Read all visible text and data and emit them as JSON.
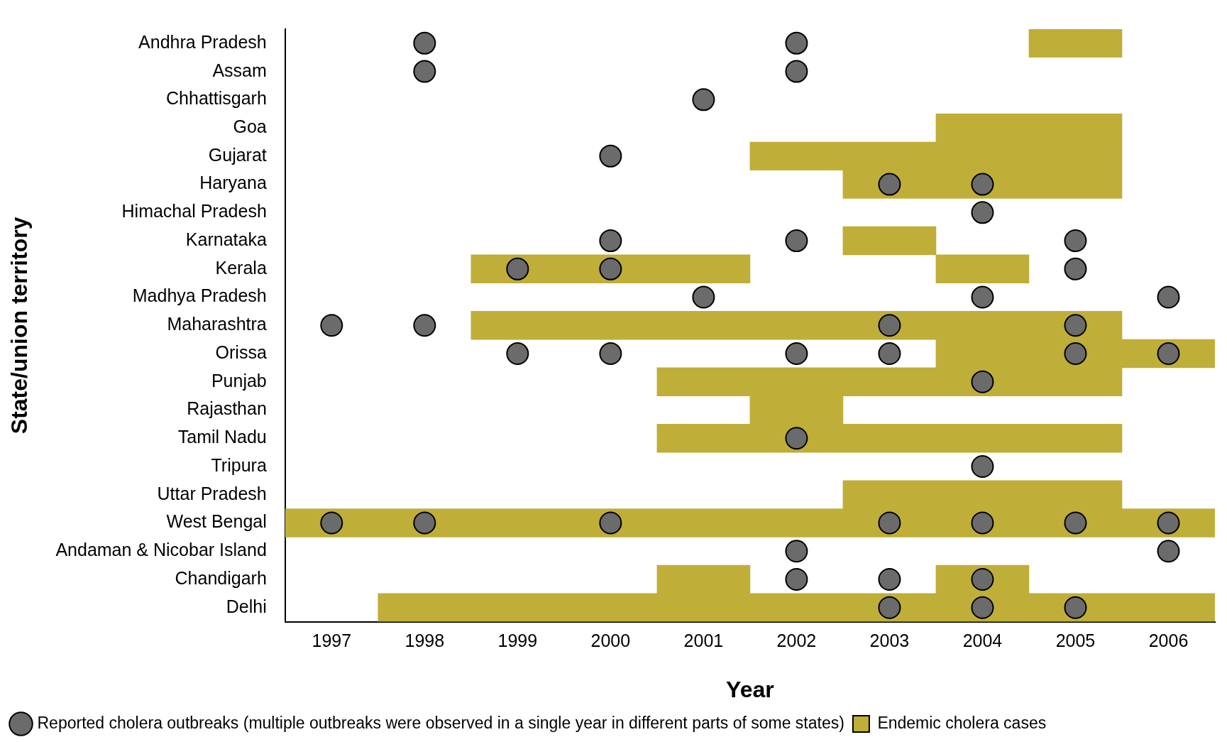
{
  "chart_data": {
    "type": "bar",
    "orientation": "horizontal",
    "xlabel": "Year",
    "ylabel": "State/union territory",
    "categories": [
      "Andhra Pradesh",
      "Assam",
      "Chhattisgarh",
      "Goa",
      "Gujarat",
      "Haryana",
      "Himachal Pradesh",
      "Karnataka",
      "Kerala",
      "Madhya Pradesh",
      "Maharashtra",
      "Orissa",
      "Punjab",
      "Rajasthan",
      "Tamil Nadu",
      "Tripura",
      "Uttar Pradesh",
      "West Bengal",
      "Andaman & Nicobar Island",
      "Chandigarh",
      "Delhi"
    ],
    "xlim": [
      1996.5,
      2006.5
    ],
    "xticks": [
      1997,
      1998,
      1999,
      2000,
      2001,
      2002,
      2003,
      2004,
      2005,
      2006
    ],
    "grid": false,
    "legend": "bottom",
    "series": [
      {
        "type": "scatter",
        "name": "Reported cholera outbreaks (multiple outbreaks were observed in a single year in different parts of some states)",
        "color": "#6b6b6b",
        "marker": "circle",
        "values": [
          1998,
          2002,
          1998,
          2002,
          2001,
          2000,
          2003,
          2004,
          2004,
          2000,
          2002,
          2005,
          1999,
          2000,
          2005,
          2001,
          2004,
          2006,
          1997,
          1998,
          2003,
          2005,
          1999,
          2000,
          2002,
          2003,
          2005,
          2006,
          2004,
          2002,
          2004,
          1997,
          1998,
          2000,
          2003,
          2004,
          2005,
          2006,
          2002,
          2006,
          2002,
          2003,
          2004,
          2003,
          2004,
          2005
        ],
        "x": [
          "Andhra Pradesh",
          "Andhra Pradesh",
          "Assam",
          "Assam",
          "Chhattisgarh",
          "Gujarat",
          "Haryana",
          "Haryana",
          "Himachal Pradesh",
          "Karnataka",
          "Karnataka",
          "Karnataka",
          "Kerala",
          "Kerala",
          "Kerala",
          "Madhya Pradesh",
          "Madhya Pradesh",
          "Madhya Pradesh",
          "Maharashtra",
          "Maharashtra",
          "Maharashtra",
          "Maharashtra",
          "Orissa",
          "Orissa",
          "Orissa",
          "Orissa",
          "Orissa",
          "Orissa",
          "Punjab",
          "Tamil Nadu",
          "Tripura",
          "West Bengal",
          "West Bengal",
          "West Bengal",
          "West Bengal",
          "West Bengal",
          "West Bengal",
          "West Bengal",
          "Andaman & Nicobar Island",
          "Andaman & Nicobar Island",
          "Chandigarh",
          "Chandigarh",
          "Chandigarh",
          "Delhi",
          "Delhi",
          "Delhi"
        ]
      },
      {
        "type": "bar",
        "name": "Endemic cholera cases",
        "color": "#bfae38",
        "base": [
          2004.5,
          null,
          null,
          2003.5,
          2001.5,
          2002.5,
          null,
          2002.5,
          1998.5,
          null,
          1998.5,
          2003.5,
          2000.5,
          2001.5,
          2000.5,
          null,
          2002.5,
          1996.5,
          null,
          2000.5,
          1997.5
        ],
        "values": [
          1,
          null,
          null,
          2,
          4,
          3,
          null,
          1,
          3,
          null,
          7,
          3,
          5,
          1,
          5,
          null,
          3,
          10,
          null,
          1,
          9
        ]
      },
      {
        "type": "bar",
        "color": "#bfae38",
        "base": [
          null,
          null,
          null,
          null,
          null,
          null,
          null,
          null,
          2003.5,
          null,
          null,
          null,
          null,
          null,
          null,
          null,
          null,
          null,
          null,
          2003.5,
          null
        ],
        "values": [
          null,
          null,
          null,
          null,
          null,
          null,
          null,
          null,
          1,
          null,
          null,
          null,
          null,
          null,
          null,
          null,
          null,
          null,
          null,
          1,
          null
        ]
      }
    ]
  }
}
